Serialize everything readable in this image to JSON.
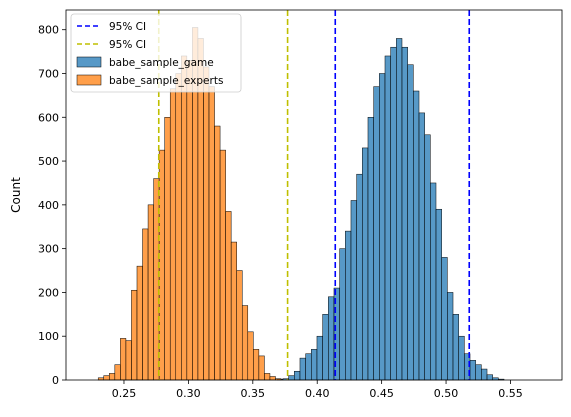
{
  "chart_data": {
    "type": "histogram",
    "title": "",
    "xlabel": "",
    "ylabel": "Count",
    "xlim": [
      0.205,
      0.59
    ],
    "ylim": [
      0,
      845
    ],
    "xticks": [
      0.25,
      0.3,
      0.35,
      0.4,
      0.45,
      0.5,
      0.55
    ],
    "xtick_labels": [
      "0.25",
      "0.30",
      "0.35",
      "0.40",
      "0.45",
      "0.50",
      "0.55"
    ],
    "yticks": [
      0,
      100,
      200,
      300,
      400,
      500,
      600,
      700,
      800
    ],
    "ytick_labels": [
      "0",
      "100",
      "200",
      "300",
      "400",
      "500",
      "600",
      "700",
      "800"
    ],
    "grid": false,
    "legend_position": "upper-left",
    "legend": [
      {
        "label": "95% CI",
        "kind": "line",
        "color": "#0000ff",
        "dash": true
      },
      {
        "label": "95% CI",
        "kind": "line",
        "color": "#bfbf00",
        "dash": true
      },
      {
        "label": "babe_sample_game",
        "kind": "patch",
        "color": "#1f77b4"
      },
      {
        "label": "babe_sample_experts",
        "kind": "patch",
        "color": "#ff7f0e"
      }
    ],
    "ci_lines": [
      {
        "series": "babe_sample_game",
        "color": "#0000ff",
        "values": [
          0.414,
          0.518
        ]
      },
      {
        "series": "babe_sample_experts",
        "color": "#bfbf00",
        "values": [
          0.277,
          0.377
        ]
      }
    ],
    "series": [
      {
        "name": "babe_sample_experts",
        "color": "#ff7f0e",
        "bin_start": 0.23,
        "bin_width": 0.0043,
        "counts": [
          5,
          10,
          15,
          35,
          95,
          90,
          205,
          260,
          345,
          400,
          460,
          525,
          600,
          665,
          700,
          740,
          730,
          805,
          780,
          715,
          670,
          580,
          525,
          385,
          315,
          250,
          170,
          110,
          70,
          55,
          15,
          8,
          3
        ]
      },
      {
        "name": "babe_sample_game",
        "color": "#1f77b4",
        "bin_start": 0.369,
        "bin_width": 0.0044,
        "counts": [
          2,
          3,
          10,
          20,
          50,
          60,
          70,
          100,
          150,
          190,
          210,
          300,
          340,
          410,
          470,
          530,
          600,
          670,
          700,
          740,
          760,
          780,
          760,
          720,
          660,
          610,
          560,
          450,
          390,
          280,
          200,
          150,
          100,
          60,
          45,
          35,
          25,
          12,
          5,
          2
        ]
      }
    ]
  }
}
